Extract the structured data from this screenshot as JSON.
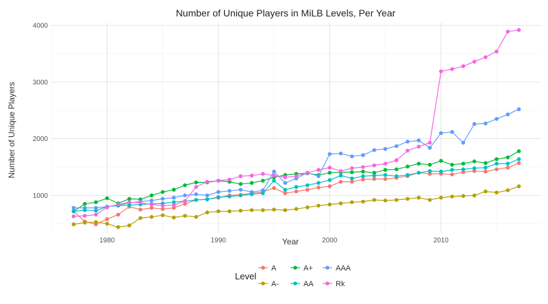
{
  "chart_data": {
    "type": "line",
    "title": "Number of Unique Players in MiLB Levels, Per Year",
    "xlabel": "Year",
    "ylabel": "Number of Unique Players",
    "xlim": [
      1975,
      2019
    ],
    "ylim": [
      340,
      4050
    ],
    "x_ticks": [
      1980,
      1990,
      2000,
      2010
    ],
    "y_ticks": [
      1000,
      2000,
      3000,
      4000
    ],
    "grid": true,
    "markers": true,
    "legend": {
      "title": "Level",
      "position": "bottom"
    },
    "x": [
      1977,
      1978,
      1979,
      1980,
      1981,
      1982,
      1983,
      1984,
      1985,
      1986,
      1987,
      1988,
      1989,
      1990,
      1991,
      1992,
      1993,
      1994,
      1995,
      1996,
      1997,
      1998,
      1999,
      2000,
      2001,
      2002,
      2003,
      2004,
      2005,
      2006,
      2007,
      2008,
      2009,
      2010,
      2011,
      2012,
      2013,
      2014,
      2015,
      2016,
      2017
    ],
    "series": [
      {
        "name": "A",
        "color": "#F8766D",
        "values": [
          720,
          540,
          490,
          580,
          660,
          800,
          750,
          780,
          760,
          780,
          850,
          920,
          930,
          960,
          1000,
          1010,
          1040,
          1060,
          1130,
          1040,
          1070,
          1100,
          1140,
          1160,
          1240,
          1240,
          1280,
          1290,
          1290,
          1310,
          1340,
          1400,
          1380,
          1380,
          1370,
          1410,
          1430,
          1420,
          1460,
          1490,
          1570
        ]
      },
      {
        "name": "A+",
        "color": "#00BA38",
        "values": [
          720,
          850,
          880,
          950,
          860,
          940,
          930,
          1000,
          1060,
          1100,
          1180,
          1230,
          1230,
          1260,
          1240,
          1200,
          1220,
          1260,
          1320,
          1360,
          1380,
          1390,
          1360,
          1400,
          1410,
          1410,
          1420,
          1400,
          1450,
          1460,
          1510,
          1560,
          1540,
          1610,
          1540,
          1560,
          1600,
          1570,
          1640,
          1670,
          1780
        ]
      },
      {
        "name": "AAA",
        "color": "#619CFF",
        "values": [
          780,
          780,
          780,
          800,
          820,
          870,
          890,
          910,
          940,
          960,
          1000,
          1020,
          1000,
          1060,
          1080,
          1100,
          1060,
          1090,
          1420,
          1220,
          1300,
          1400,
          1340,
          1730,
          1740,
          1690,
          1710,
          1800,
          1820,
          1870,
          1950,
          1970,
          1840,
          2100,
          2120,
          1930,
          2260,
          2270,
          2350,
          2430,
          2520
        ]
      },
      {
        "name": "A-",
        "color": "#B79F00",
        "values": [
          490,
          520,
          530,
          500,
          440,
          470,
          600,
          620,
          650,
          610,
          640,
          620,
          700,
          720,
          720,
          730,
          740,
          740,
          750,
          740,
          760,
          790,
          820,
          840,
          860,
          880,
          890,
          920,
          910,
          920,
          940,
          960,
          920,
          960,
          980,
          990,
          1000,
          1070,
          1050,
          1090,
          1160
        ]
      },
      {
        "name": "AA",
        "color": "#00BFC4",
        "values": [
          720,
          740,
          730,
          800,
          820,
          830,
          840,
          850,
          860,
          880,
          900,
          920,
          930,
          970,
          980,
          1000,
          1020,
          1040,
          1260,
          1100,
          1150,
          1180,
          1220,
          1270,
          1350,
          1300,
          1340,
          1350,
          1360,
          1340,
          1360,
          1400,
          1430,
          1420,
          1450,
          1460,
          1480,
          1490,
          1560,
          1560,
          1640
        ]
      },
      {
        "name": "Rk",
        "color": "#F564E3",
        "values": [
          630,
          640,
          660,
          790,
          840,
          880,
          870,
          840,
          820,
          830,
          900,
          1150,
          1240,
          1260,
          1280,
          1340,
          1350,
          1380,
          1350,
          1320,
          1340,
          1400,
          1450,
          1490,
          1430,
          1480,
          1500,
          1530,
          1560,
          1620,
          1790,
          1860,
          1930,
          3190,
          3230,
          3280,
          3360,
          3440,
          3540,
          3890,
          3920
        ]
      }
    ]
  }
}
